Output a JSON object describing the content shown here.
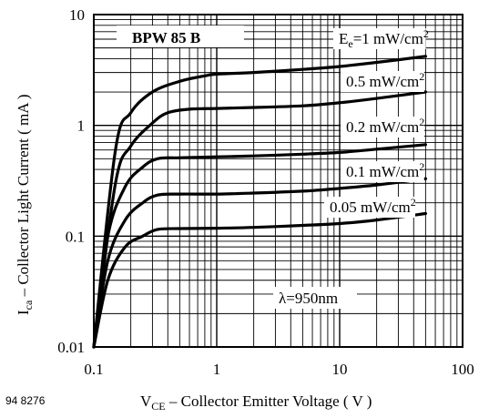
{
  "chart_data": {
    "type": "line",
    "title": "BPW 85 B",
    "figure_id": "94 8276",
    "xscale": "log",
    "yscale": "log",
    "xlim": [
      0.1,
      100
    ],
    "ylim": [
      0.01,
      10
    ],
    "x_ticks": [
      "0.1",
      "1",
      "10",
      "100"
    ],
    "y_ticks": [
      "0.01",
      "0.1",
      "1",
      "10"
    ],
    "xlabel": {
      "main": "V",
      "sub": "CE",
      "rest": " – Collector Emitter Voltage ( V )"
    },
    "ylabel": {
      "main": "I",
      "sub": "ca",
      "rest": " – Collector Light Current ( mA )"
    },
    "annotation": "λ=950nm",
    "grid": true,
    "series": [
      {
        "name": "E",
        "name_sub": "e",
        "prefix": "",
        "value": "=1 mW/cm",
        "unit_sup": "2",
        "points": [
          [
            0.1,
            0.01
          ],
          [
            0.15,
            0.6
          ],
          [
            0.2,
            1.3
          ],
          [
            0.3,
            2.0
          ],
          [
            0.5,
            2.5
          ],
          [
            0.8,
            2.8
          ],
          [
            1,
            2.9
          ],
          [
            2,
            3.0
          ],
          [
            5,
            3.2
          ],
          [
            10,
            3.4
          ],
          [
            20,
            3.7
          ],
          [
            50,
            4.2
          ]
        ]
      },
      {
        "name": "",
        "name_sub": "",
        "prefix": "",
        "value": "0.5 mW/cm",
        "unit_sup": "2",
        "points": [
          [
            0.1,
            0.01
          ],
          [
            0.15,
            0.3
          ],
          [
            0.2,
            0.65
          ],
          [
            0.3,
            1.05
          ],
          [
            0.4,
            1.3
          ],
          [
            0.6,
            1.4
          ],
          [
            1,
            1.42
          ],
          [
            2,
            1.45
          ],
          [
            5,
            1.5
          ],
          [
            10,
            1.6
          ],
          [
            20,
            1.75
          ],
          [
            50,
            2.0
          ]
        ]
      },
      {
        "name": "",
        "name_sub": "",
        "prefix": "",
        "value": "0.2 mW/cm",
        "unit_sup": "2",
        "points": [
          [
            0.1,
            0.01
          ],
          [
            0.13,
            0.1
          ],
          [
            0.18,
            0.28
          ],
          [
            0.25,
            0.42
          ],
          [
            0.33,
            0.5
          ],
          [
            0.5,
            0.51
          ],
          [
            1,
            0.52
          ],
          [
            2,
            0.53
          ],
          [
            5,
            0.55
          ],
          [
            10,
            0.57
          ],
          [
            20,
            0.61
          ],
          [
            50,
            0.67
          ]
        ]
      },
      {
        "name": "",
        "name_sub": "",
        "prefix": "",
        "value": "0.1 mW/cm",
        "unit_sup": "2",
        "points": [
          [
            0.1,
            0.01
          ],
          [
            0.13,
            0.06
          ],
          [
            0.18,
            0.14
          ],
          [
            0.25,
            0.2
          ],
          [
            0.33,
            0.235
          ],
          [
            0.5,
            0.24
          ],
          [
            1,
            0.24
          ],
          [
            2,
            0.245
          ],
          [
            5,
            0.255
          ],
          [
            10,
            0.27
          ],
          [
            20,
            0.29
          ],
          [
            50,
            0.33
          ]
        ]
      },
      {
        "name": "",
        "name_sub": "",
        "prefix": "",
        "value": "0.05 mW/cm",
        "unit_sup": "2",
        "points": [
          [
            0.1,
            0.01
          ],
          [
            0.13,
            0.04
          ],
          [
            0.18,
            0.08
          ],
          [
            0.25,
            0.1
          ],
          [
            0.33,
            0.115
          ],
          [
            0.5,
            0.117
          ],
          [
            1,
            0.118
          ],
          [
            2,
            0.12
          ],
          [
            5,
            0.125
          ],
          [
            10,
            0.13
          ],
          [
            20,
            0.14
          ],
          [
            50,
            0.16
          ]
        ]
      }
    ]
  }
}
